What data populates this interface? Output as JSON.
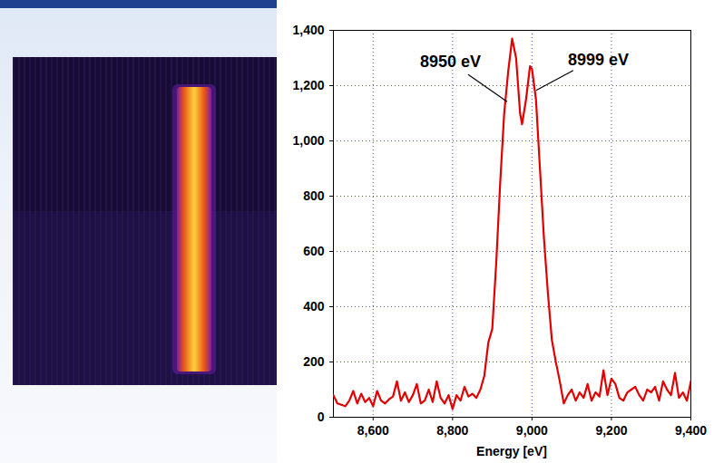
{
  "chart_data": {
    "type": "line",
    "x_label": "Energy [eV]",
    "xlim": [
      8500,
      9400
    ],
    "xticks": [
      8600,
      8800,
      9000,
      9200,
      9400
    ],
    "ylim": [
      0,
      1400
    ],
    "yticks": [
      0,
      200,
      400,
      600,
      800,
      1000,
      1200,
      1400
    ],
    "grid": true,
    "color": "#e00000",
    "annotations": [
      {
        "text": "8950 eV",
        "x": 8950
      },
      {
        "text": "8999 eV",
        "x": 8999
      }
    ],
    "x": [
      8500,
      8510,
      8520,
      8530,
      8540,
      8550,
      8560,
      8570,
      8580,
      8590,
      8600,
      8610,
      8620,
      8630,
      8640,
      8650,
      8660,
      8670,
      8680,
      8690,
      8700,
      8710,
      8720,
      8730,
      8740,
      8750,
      8760,
      8770,
      8780,
      8790,
      8800,
      8810,
      8820,
      8830,
      8840,
      8850,
      8860,
      8870,
      8880,
      8890,
      8900,
      8910,
      8920,
      8930,
      8940,
      8950,
      8960,
      8970,
      8975,
      8985,
      8995,
      9000,
      9010,
      9020,
      9030,
      9040,
      9050,
      9060,
      9070,
      9080,
      9090,
      9100,
      9110,
      9120,
      9130,
      9140,
      9150,
      9160,
      9170,
      9180,
      9190,
      9200,
      9210,
      9220,
      9230,
      9240,
      9250,
      9260,
      9270,
      9280,
      9290,
      9300,
      9310,
      9320,
      9330,
      9340,
      9350,
      9360,
      9370,
      9380,
      9390,
      9400
    ],
    "values": [
      80,
      50,
      45,
      40,
      60,
      95,
      50,
      85,
      55,
      70,
      40,
      95,
      60,
      50,
      65,
      75,
      130,
      60,
      90,
      55,
      80,
      120,
      50,
      60,
      100,
      55,
      130,
      70,
      50,
      80,
      30,
      80,
      60,
      110,
      75,
      85,
      70,
      100,
      150,
      270,
      320,
      560,
      850,
      1100,
      1250,
      1370,
      1300,
      1100,
      1060,
      1150,
      1270,
      1260,
      1150,
      900,
      650,
      450,
      280,
      200,
      130,
      50,
      80,
      100,
      60,
      90,
      70,
      120,
      60,
      90,
      75,
      170,
      80,
      140,
      120,
      70,
      60,
      90,
      100,
      110,
      80,
      60,
      100,
      90,
      110,
      60,
      130,
      100,
      80,
      160,
      70,
      90,
      60,
      130
    ]
  }
}
